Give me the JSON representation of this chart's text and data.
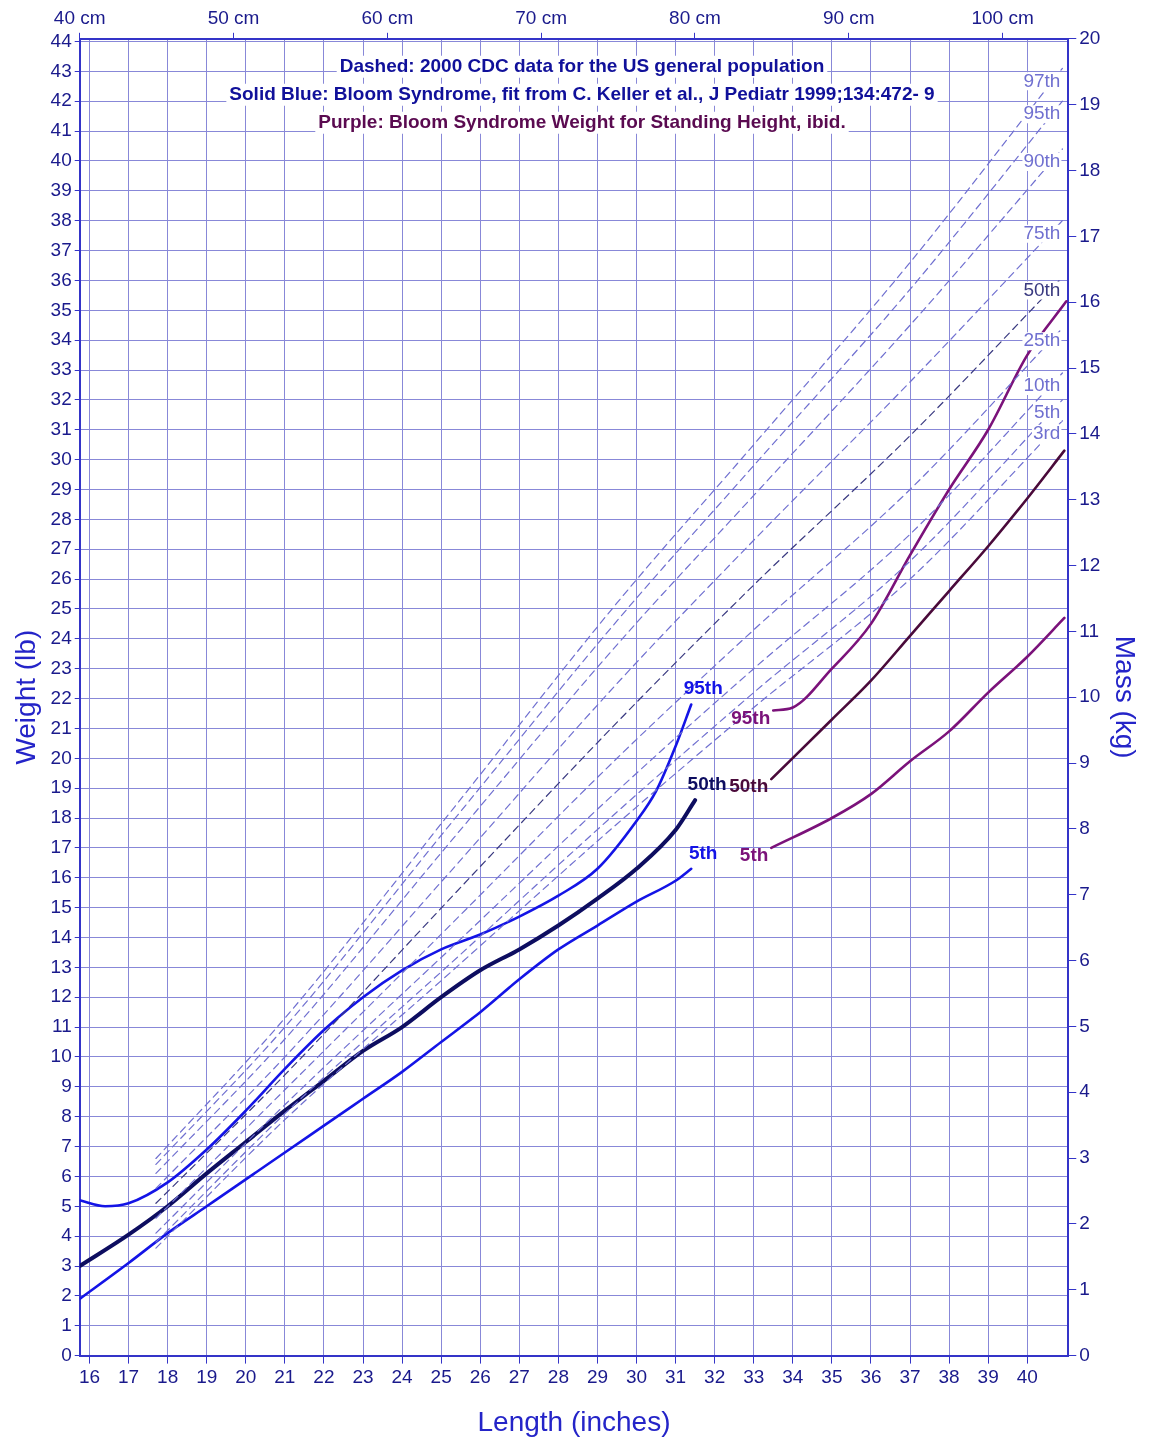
{
  "chart_data": {
    "type": "line",
    "xlabel": "Length (inches)",
    "ylabel": "Weight (lb)",
    "y2label": "Mass (kg)",
    "annotations": [
      "Dashed: 2000 CDC data for the US general population",
      "Solid Blue: Bloom Syndrome, fit from C. Keller et al., J Pediatr 1999;134:472- 9",
      "Purple: Bloom Syndrome Weight for Standing Height, ibid."
    ],
    "xlim": [
      15.75,
      41.05
    ],
    "xticks": [
      16,
      17,
      18,
      19,
      20,
      21,
      22,
      23,
      24,
      25,
      26,
      27,
      28,
      29,
      30,
      31,
      32,
      33,
      34,
      35,
      36,
      37,
      38,
      39,
      40
    ],
    "x2lim": [
      40.0,
      104.27
    ],
    "x2ticks": [
      {
        "value": 40,
        "label": "40 cm"
      },
      {
        "value": 50,
        "label": "50 cm"
      },
      {
        "value": 60,
        "label": "60 cm"
      },
      {
        "value": 70,
        "label": "70 cm"
      },
      {
        "value": 80,
        "label": "80 cm"
      },
      {
        "value": 90,
        "label": "90 cm"
      },
      {
        "value": 100,
        "label": "100 cm"
      }
    ],
    "ylim": [
      0,
      44.09
    ],
    "yticks": [
      0,
      1,
      2,
      3,
      4,
      5,
      6,
      7,
      8,
      9,
      10,
      11,
      12,
      13,
      14,
      15,
      16,
      17,
      18,
      19,
      20,
      21,
      22,
      23,
      24,
      25,
      26,
      27,
      28,
      29,
      30,
      31,
      32,
      33,
      34,
      35,
      36,
      37,
      38,
      39,
      40,
      41,
      42,
      43,
      44
    ],
    "y2lim": [
      0,
      20
    ],
    "y2ticks": [
      0,
      1,
      2,
      3,
      4,
      5,
      6,
      7,
      8,
      9,
      10,
      11,
      12,
      13,
      14,
      15,
      16,
      17,
      18,
      19,
      20
    ],
    "grid": true,
    "series": [
      {
        "name": "97th",
        "color": "#7070d0",
        "line_style": "dashed",
        "x": [
          17.7,
          21,
          25.3,
          29.5,
          33,
          37,
          40.9
        ],
        "values": [
          6.6,
          11.3,
          18.3,
          25.2,
          30.5,
          36.6,
          43.1
        ]
      },
      {
        "name": "95th",
        "color": "#7070d0",
        "line_style": "dashed",
        "x": [
          17.7,
          21,
          25.3,
          29.5,
          33,
          37,
          40.9
        ],
        "values": [
          6.4,
          11.0,
          17.9,
          24.6,
          29.8,
          35.7,
          42.0
        ]
      },
      {
        "name": "90th",
        "color": "#7070d0",
        "line_style": "dashed",
        "x": [
          17.7,
          21,
          25.3,
          29.5,
          33,
          37,
          40.9
        ],
        "values": [
          6.1,
          10.6,
          17.3,
          23.8,
          28.8,
          34.5,
          40.4
        ]
      },
      {
        "name": "75th",
        "color": "#7070d0",
        "line_style": "dashed",
        "x": [
          17.7,
          21,
          25.3,
          29.5,
          33,
          37,
          40.9
        ],
        "values": [
          5.6,
          10.0,
          16.3,
          22.5,
          27.3,
          32.6,
          38.0
        ]
      },
      {
        "name": "50th",
        "color": "#3a3a80",
        "line_style": "dashed",
        "x": [
          17.7,
          21,
          25.3,
          29.5,
          33,
          37,
          40.9
        ],
        "values": [
          5.1,
          9.4,
          15.4,
          21.2,
          25.8,
          30.8,
          36.1
        ]
      },
      {
        "name": "25th",
        "color": "#7070d0",
        "line_style": "dashed",
        "x": [
          17.7,
          21,
          25.3,
          29.5,
          33,
          37,
          40.9
        ],
        "values": [
          4.6,
          8.9,
          14.5,
          20.0,
          24.3,
          29.0,
          34.4
        ]
      },
      {
        "name": "10th",
        "color": "#7070d0",
        "line_style": "dashed",
        "x": [
          17.7,
          21,
          25.3,
          29.5,
          33,
          37,
          40.9
        ],
        "values": [
          4.1,
          8.4,
          13.7,
          18.9,
          23.0,
          27.5,
          32.9
        ]
      },
      {
        "name": "5th",
        "color": "#7070d0",
        "line_style": "dashed",
        "x": [
          17.7,
          21,
          25.3,
          29.5,
          33,
          37,
          40.9
        ],
        "values": [
          3.8,
          8.1,
          13.2,
          18.2,
          22.2,
          26.6,
          32.0
        ]
      },
      {
        "name": "3rd",
        "color": "#7070d0",
        "line_style": "dashed",
        "x": [
          17.7,
          21,
          25.3,
          29.5,
          33,
          37,
          40.9
        ],
        "values": [
          3.6,
          7.9,
          12.9,
          17.8,
          21.7,
          26.0,
          31.3
        ]
      },
      {
        "name": "95th",
        "color": "#1414e6",
        "line_style": "solid",
        "x": [
          15.75,
          16.4,
          17,
          18,
          19,
          20,
          21,
          22,
          23,
          24,
          25,
          26,
          27,
          28,
          29,
          30,
          30.5,
          31,
          31.4
        ],
        "values": [
          5.2,
          5.0,
          5.1,
          5.8,
          6.9,
          8.2,
          9.6,
          10.9,
          12.0,
          12.9,
          13.6,
          14.1,
          14.7,
          15.4,
          16.3,
          17.9,
          18.9,
          20.4,
          21.8
        ]
      },
      {
        "name": "50th",
        "color": "#0d0d60",
        "line_style": "solid",
        "x": [
          15.75,
          17,
          18,
          19,
          20,
          21,
          22,
          23,
          24,
          25,
          26,
          27,
          28,
          29,
          30,
          31,
          31.5
        ],
        "values": [
          3.0,
          4.05,
          5.0,
          6.1,
          7.15,
          8.2,
          9.2,
          10.2,
          11.0,
          12.0,
          12.9,
          13.6,
          14.4,
          15.3,
          16.3,
          17.6,
          18.6
        ]
      },
      {
        "name": "5th",
        "color": "#1414e6",
        "line_style": "solid",
        "x": [
          15.75,
          17,
          18,
          19,
          20,
          21,
          22,
          23,
          24,
          25,
          26,
          27,
          28,
          29,
          30,
          31,
          31.4
        ],
        "values": [
          1.9,
          3.1,
          4.1,
          5.0,
          5.9,
          6.8,
          7.7,
          8.6,
          9.5,
          10.5,
          11.5,
          12.6,
          13.6,
          14.4,
          15.2,
          15.9,
          16.3
        ]
      },
      {
        "name": "95th",
        "color": "#7b127a",
        "line_style": "solid",
        "x": [
          33.5,
          34,
          35,
          36,
          37,
          38,
          39,
          40,
          41.0
        ],
        "values": [
          21.6,
          21.7,
          23.0,
          24.5,
          26.8,
          29.0,
          31.0,
          33.5,
          35.3
        ]
      },
      {
        "name": "50th",
        "color": "#4a0a3a",
        "line_style": "solid",
        "x": [
          33.45,
          35,
          36,
          37,
          38,
          39,
          40,
          40.95
        ],
        "values": [
          19.3,
          21.3,
          22.6,
          24.1,
          25.6,
          27.1,
          28.7,
          30.3
        ]
      },
      {
        "name": "5th",
        "color": "#7b127a",
        "line_style": "solid",
        "x": [
          33.45,
          35,
          36,
          37,
          38,
          39,
          40,
          40.95
        ],
        "values": [
          17.0,
          18.0,
          18.8,
          19.9,
          20.9,
          22.2,
          23.4,
          24.7
        ]
      }
    ]
  }
}
